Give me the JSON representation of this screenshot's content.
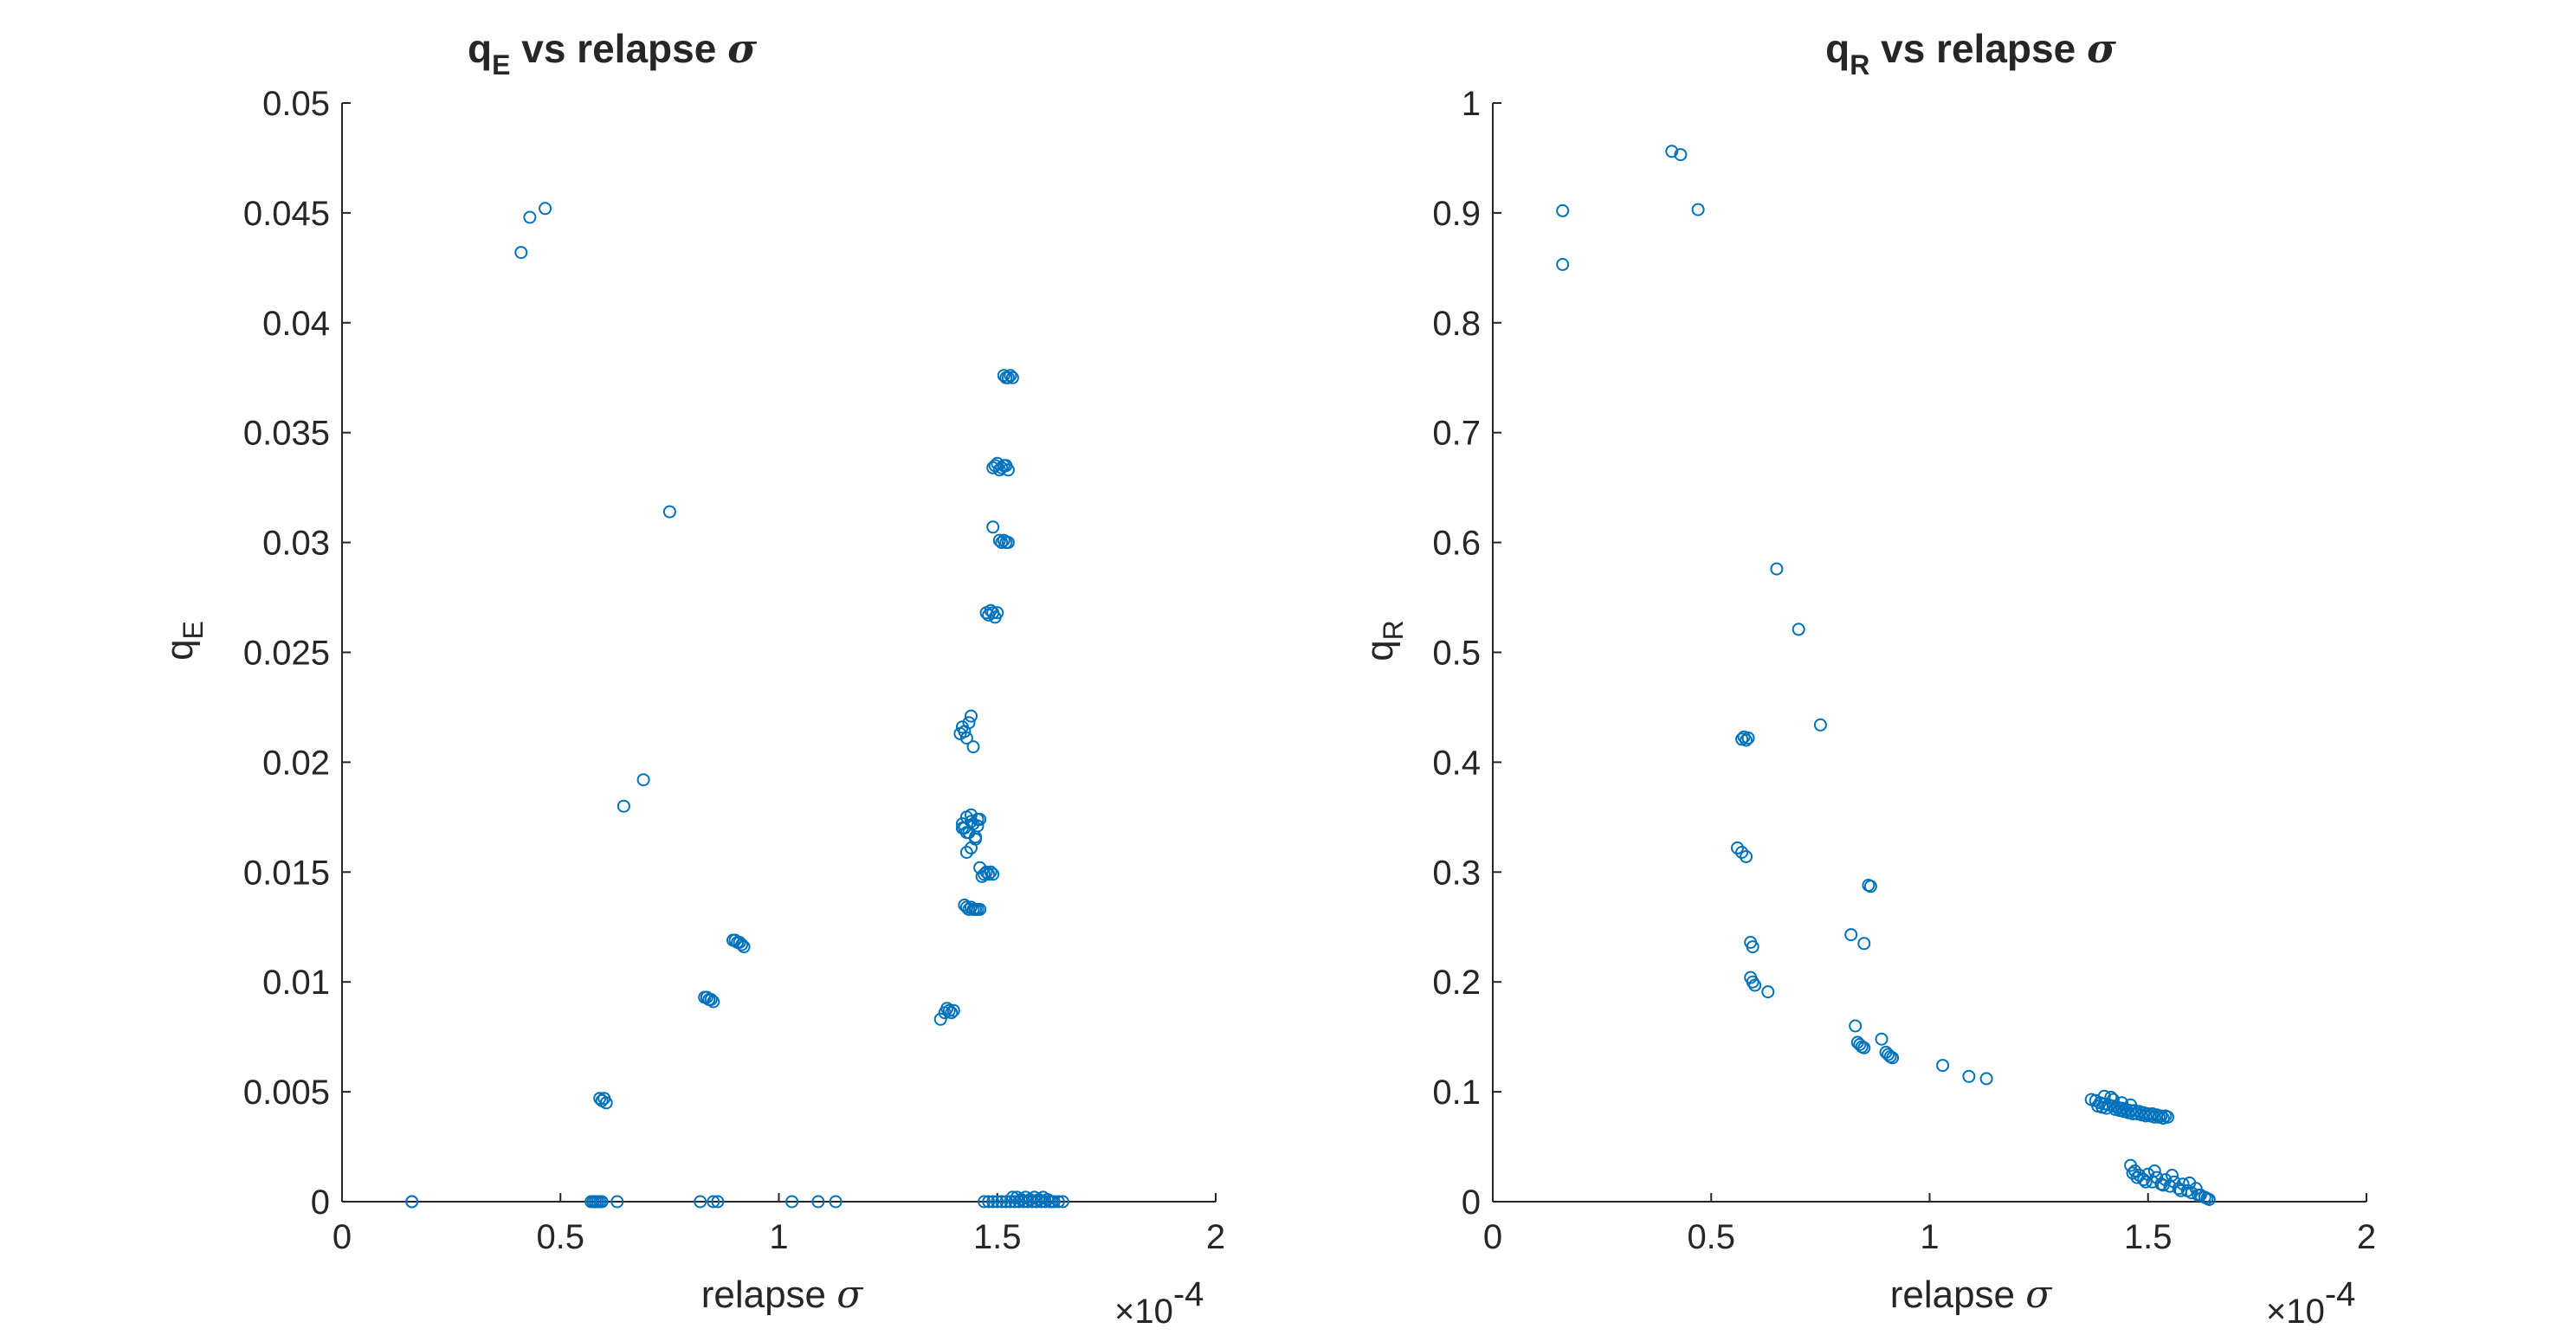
{
  "chart_data": [
    {
      "type": "scatter",
      "title": "q_E vs relapse σ",
      "title_parts": {
        "main": "q",
        "sub": "E",
        "rest": " vs relapse ",
        "sigma": "σ"
      },
      "xlabel": "relapse σ",
      "xlabel_parts": {
        "text": "relapse ",
        "sigma": "σ"
      },
      "ylabel": "q_E",
      "ylabel_parts": {
        "main": "q",
        "sub": "E"
      },
      "x_multiplier": "×10^-4",
      "x_multiplier_parts": {
        "times": "×10",
        "exp": "-4"
      },
      "xlim": [
        0,
        2
      ],
      "ylim": [
        0,
        0.05
      ],
      "xticks": [
        0,
        0.5,
        1,
        1.5,
        2
      ],
      "xtick_labels": [
        "0",
        "0.5",
        "1",
        "1.5",
        "2"
      ],
      "yticks": [
        0,
        0.005,
        0.01,
        0.015,
        0.02,
        0.025,
        0.03,
        0.035,
        0.04,
        0.045,
        0.05
      ],
      "ytick_labels": [
        "0",
        "0.005",
        "0.01",
        "0.015",
        "0.02",
        "0.025",
        "0.03",
        "0.035",
        "0.04",
        "0.045",
        "0.05"
      ],
      "grid": false,
      "marker_color": "#0072BD",
      "series": [
        {
          "x": [
            0.16,
            0.16,
            0.41,
            0.43,
            0.465,
            0.75,
            0.69,
            0.645,
            0.57,
            0.575,
            0.58,
            0.585,
            0.59,
            0.595,
            0.63,
            0.59,
            0.595,
            0.6,
            0.605,
            0.83,
            0.835,
            0.84,
            0.845,
            0.85,
            0.895,
            0.9,
            0.905,
            0.91,
            0.915,
            0.92,
            0.82,
            0.85,
            0.86,
            1.03,
            1.09,
            1.13,
            1.37,
            1.38,
            1.385,
            1.39,
            1.395,
            1.4,
            1.42,
            1.425,
            1.43,
            1.435,
            1.44,
            1.445,
            1.45,
            1.455,
            1.46,
            1.465,
            1.415,
            1.42,
            1.425,
            1.43,
            1.435,
            1.44,
            1.445,
            1.43,
            1.425,
            1.43,
            1.435,
            1.44,
            1.445,
            1.45,
            1.44,
            1.455,
            1.46,
            1.47,
            1.475,
            1.48,
            1.485,
            1.49,
            1.42,
            1.43,
            1.44,
            1.45,
            1.455,
            1.46,
            1.475,
            1.48,
            1.485,
            1.49,
            1.495,
            1.49,
            1.5,
            1.49,
            1.495,
            1.5,
            1.505,
            1.51,
            1.515,
            1.505,
            1.51,
            1.515,
            1.52,
            1.525,
            1.515,
            1.52,
            1.525,
            1.52,
            1.525,
            1.53,
            1.535,
            1.47,
            1.48,
            1.49,
            1.5,
            1.51,
            1.52,
            1.53,
            1.54,
            1.55,
            1.56,
            1.57,
            1.58,
            1.59,
            1.6,
            1.61,
            1.62,
            1.63,
            1.64,
            1.65,
            1.535,
            1.545,
            1.555,
            1.565,
            1.575,
            1.585,
            1.595,
            1.605,
            1.615,
            1.625
          ],
          "y": [
            0.0,
            0.0,
            0.0432,
            0.0448,
            0.0452,
            0.0314,
            0.0192,
            0.018,
            0.0,
            0.0,
            0.0,
            0.0,
            0.0,
            0.0,
            0.0,
            0.0047,
            0.0046,
            0.0047,
            0.0045,
            0.0093,
            0.0093,
            0.0092,
            0.0092,
            0.0091,
            0.0119,
            0.0119,
            0.0118,
            0.0118,
            0.0117,
            0.0116,
            0.0,
            0.0,
            0.0,
            0.0,
            0.0,
            0.0,
            0.0083,
            0.0086,
            0.0088,
            0.0087,
            0.0086,
            0.0087,
            0.0172,
            0.017,
            0.0175,
            0.0168,
            0.0176,
            0.0172,
            0.0166,
            0.0174,
            0.0152,
            0.0148,
            0.0213,
            0.0216,
            0.0214,
            0.0211,
            0.0218,
            0.0221,
            0.0207,
            0.0159,
            0.0135,
            0.0134,
            0.0133,
            0.0134,
            0.0133,
            0.0133,
            0.0161,
            0.0133,
            0.0133,
            0.0149,
            0.015,
            0.0149,
            0.015,
            0.0149,
            0.017,
            0.0168,
            0.0173,
            0.0165,
            0.0171,
            0.0174,
            0.0268,
            0.0267,
            0.0269,
            0.0268,
            0.0266,
            0.0307,
            0.0268,
            0.0334,
            0.0335,
            0.0336,
            0.0333,
            0.0334,
            0.0335,
            0.0301,
            0.03,
            0.0301,
            0.03,
            0.03,
            0.0376,
            0.0375,
            0.0375,
            0.0335,
            0.0333,
            0.0376,
            0.0375,
            0.0,
            0.0,
            0.0,
            0.0,
            0.0,
            0.0,
            0.0,
            0.0,
            0.0,
            0.0,
            0.0,
            0.0,
            0.0,
            0.0,
            0.0,
            0.0,
            0.0,
            0.0,
            0.0,
            0.0002,
            0.0002,
            0.0001,
            0.0002,
            0.0001,
            0.0002,
            0.0001,
            0.0002,
            0.0001,
            0.0
          ]
        }
      ]
    },
    {
      "type": "scatter",
      "title": "q_R vs relapse σ",
      "title_parts": {
        "main": "q",
        "sub": "R",
        "rest": " vs relapse ",
        "sigma": "σ"
      },
      "xlabel": "relapse σ",
      "xlabel_parts": {
        "text": "relapse ",
        "sigma": "σ"
      },
      "ylabel": "q_R",
      "ylabel_parts": {
        "main": "q",
        "sub": "R"
      },
      "x_multiplier": "×10^-4",
      "x_multiplier_parts": {
        "times": "×10",
        "exp": "-4"
      },
      "xlim": [
        0,
        2
      ],
      "ylim": [
        0,
        1
      ],
      "xticks": [
        0,
        0.5,
        1,
        1.5,
        2
      ],
      "xtick_labels": [
        "0",
        "0.5",
        "1",
        "1.5",
        "2"
      ],
      "yticks": [
        0,
        0.1,
        0.2,
        0.3,
        0.4,
        0.5,
        0.6,
        0.7,
        0.8,
        0.9,
        1
      ],
      "ytick_labels": [
        "0",
        "0.1",
        "0.2",
        "0.3",
        "0.4",
        "0.5",
        "0.6",
        "0.7",
        "0.8",
        "0.9",
        "1"
      ],
      "grid": false,
      "marker_color": "#0072BD",
      "series": [
        {
          "x": [
            0.16,
            0.16,
            0.41,
            0.43,
            0.47,
            0.65,
            0.7,
            0.75,
            0.57,
            0.575,
            0.58,
            0.585,
            0.56,
            0.57,
            0.58,
            0.59,
            0.595,
            0.59,
            0.595,
            0.6,
            0.63,
            0.82,
            0.85,
            0.86,
            0.865,
            0.83,
            0.835,
            0.84,
            0.845,
            0.85,
            0.89,
            0.9,
            0.905,
            0.91,
            0.915,
            1.03,
            1.09,
            1.13,
            1.37,
            1.38,
            1.39,
            1.4,
            1.41,
            1.42,
            1.43,
            1.44,
            1.45,
            1.46,
            1.47,
            1.48,
            1.49,
            1.5,
            1.51,
            1.52,
            1.53,
            1.54,
            1.545,
            1.385,
            1.395,
            1.405,
            1.415,
            1.425,
            1.435,
            1.445,
            1.455,
            1.465,
            1.475,
            1.485,
            1.495,
            1.505,
            1.515,
            1.525,
            1.535,
            1.4,
            1.42,
            1.44,
            1.46,
            1.46,
            1.47,
            1.48,
            1.49,
            1.5,
            1.51,
            1.52,
            1.53,
            1.54,
            1.55,
            1.56,
            1.57,
            1.58,
            1.59,
            1.6,
            1.61,
            1.62,
            1.63,
            1.64,
            1.465,
            1.475,
            1.495,
            1.515,
            1.535,
            1.555,
            1.575,
            1.595,
            1.615,
            1.635
          ],
          "y": [
            0.902,
            0.853,
            0.956,
            0.953,
            0.903,
            0.576,
            0.521,
            0.434,
            0.421,
            0.423,
            0.42,
            0.422,
            0.322,
            0.318,
            0.314,
            0.236,
            0.232,
            0.204,
            0.2,
            0.197,
            0.191,
            0.243,
            0.235,
            0.288,
            0.287,
            0.16,
            0.145,
            0.143,
            0.141,
            0.14,
            0.148,
            0.136,
            0.134,
            0.132,
            0.131,
            0.124,
            0.114,
            0.112,
            0.093,
            0.092,
            0.09,
            0.089,
            0.088,
            0.087,
            0.086,
            0.085,
            0.084,
            0.083,
            0.083,
            0.082,
            0.081,
            0.08,
            0.08,
            0.079,
            0.078,
            0.078,
            0.077,
            0.087,
            0.086,
            0.085,
            0.095,
            0.084,
            0.083,
            0.082,
            0.081,
            0.08,
            0.08,
            0.079,
            0.078,
            0.078,
            0.077,
            0.077,
            0.076,
            0.096,
            0.093,
            0.09,
            0.088,
            0.033,
            0.028,
            0.024,
            0.02,
            0.025,
            0.018,
            0.022,
            0.016,
            0.02,
            0.014,
            0.018,
            0.012,
            0.016,
            0.01,
            0.008,
            0.012,
            0.006,
            0.004,
            0.002,
            0.026,
            0.022,
            0.018,
            0.028,
            0.015,
            0.024,
            0.01,
            0.017,
            0.006,
            0.003
          ]
        }
      ]
    }
  ]
}
